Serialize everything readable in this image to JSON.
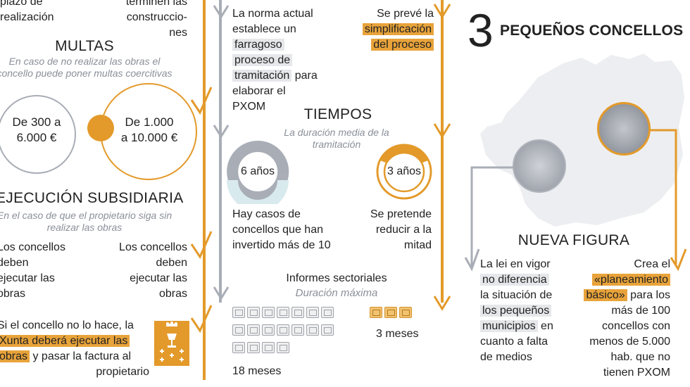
{
  "col1": {
    "top_left": "plazo de\nrealización",
    "top_right": "terminen las\nconstruccio-\nnes",
    "multas_title": "MULTAS",
    "multas_sub": "En caso de no realizar las obras el concello puede poner multas coercitivas",
    "multa_grey": "De 300 a\n6.000 €",
    "multa_orange": "De 1.000\na 10.000 €",
    "ejec_title": "EJECUCIÓN SUBSIDIARIA",
    "ejec_sub": "En el caso de que el propietario siga sin realizar las obras",
    "left_block": "Los concellos\ndeben\nejecutar las\nobras",
    "right_block": "Los concellos\ndeben\nejecutar las\nobras",
    "bottom_pre": "Si el concello no lo hace, la",
    "bottom_hl1": "Xunta deberá ejecutar las",
    "bottom_hl2": "obras",
    "bottom_post": "y pasar la factura al",
    "bottom_last": "propietario"
  },
  "col2": {
    "left_l1": "La norma actual",
    "left_l2": "establece un",
    "left_hl1": "farragoso",
    "left_hl2": "proceso de",
    "left_hl3": "tramitación",
    "left_l3": "para",
    "left_l4": "elaborar el",
    "left_l5": "PXOM",
    "right_l1": "Se prevé la",
    "right_hl1": "simplificación",
    "right_hl2": "del proceso",
    "tiempos_title": "TIEMPOS",
    "tiempos_sub": "La duración media de la tramitación",
    "donut_grey_label": "6 años",
    "donut_orange_label": "3 años",
    "grey_caption": "Hay casos de\nconcellos que han\ninvertido más de 10",
    "orange_caption": "Se pretende\nreducir a la\nmitad",
    "informes_title": "Informes sectoriales",
    "informes_sub": "Duración máxima",
    "grey_docs_count": 18,
    "orange_docs_count": 3,
    "grey_docs_label": "18 meses",
    "orange_docs_label": "3 meses"
  },
  "col3": {
    "number": "3",
    "title": "PEQUEÑOS CONCELLOS",
    "nueva_title": "NUEVA FIGURA",
    "left_l1": "La lei en vigor",
    "left_hl1": "no diferencia",
    "left_l2": "la situación de",
    "left_hl2": "los pequeños",
    "left_hl3": "municipios",
    "left_l3": "en",
    "left_l4": "cuanto a falta",
    "left_l5": "de medios",
    "right_l1": "Crea el",
    "right_hl1": "«planeamiento",
    "right_hl2": "básico»",
    "right_l2": "para los",
    "right_l3": "más de 100",
    "right_l4": "concellos con",
    "right_l5": "menos de 5.000",
    "right_l6": "hab. que no",
    "right_l7": "tienen PXOM"
  },
  "colors": {
    "orange": "#e39a2a",
    "grey": "#a9adb6",
    "highlight_grey": "#e6e7ea"
  }
}
